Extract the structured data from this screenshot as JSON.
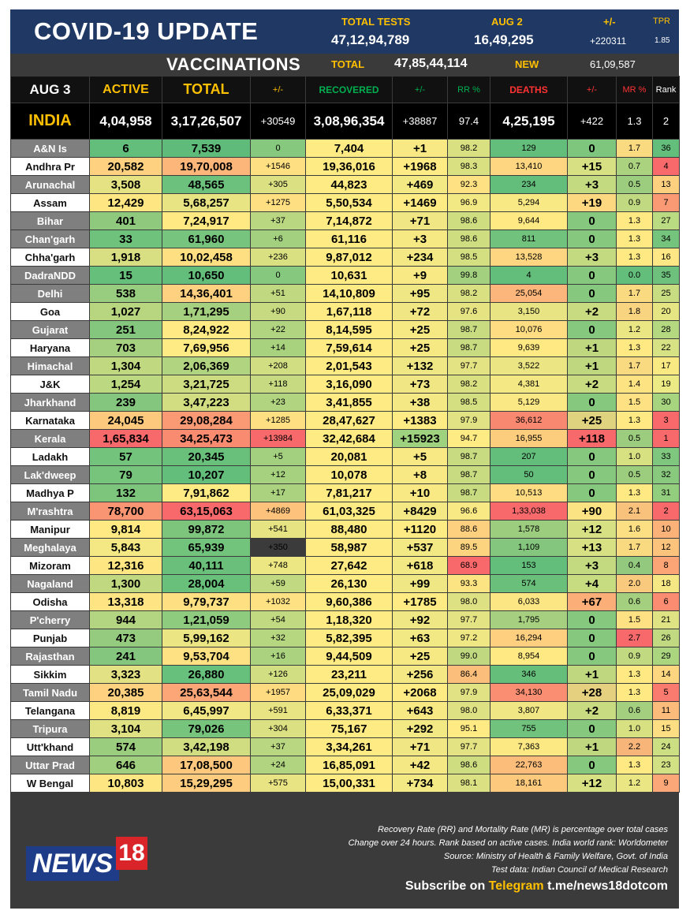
{
  "header": {
    "title": "COVID-19 UPDATE",
    "total_tests_label": "TOTAL TESTS",
    "total_tests_value": "47,12,94,789",
    "aug2_label": "AUG 2",
    "aug2_value": "16,49,295",
    "change_label": "+/-",
    "change_value": "+220311",
    "tpr_label": "TPR",
    "tpr_value": "1.85",
    "vacc_title": "VACCINATIONS",
    "vacc_total_label": "TOTAL",
    "vacc_total_value": "47,85,44,114",
    "vacc_new_label": "NEW",
    "vacc_new_value": "61,09,587"
  },
  "columns": {
    "date": "AUG 3",
    "active": "ACTIVE",
    "total": "TOTAL",
    "pm1": "+/-",
    "recovered": "RECOVERED",
    "pm2": "+/-",
    "rr": "RR %",
    "deaths": "DEATHS",
    "pm3": "+/-",
    "mr": "MR %",
    "rank": "Rank"
  },
  "india": {
    "name": "INDIA",
    "active": "4,04,958",
    "total": "3,17,26,507",
    "total_change": "+30549",
    "recovered": "3,08,96,354",
    "recovered_change": "+38887",
    "rr": "97.4",
    "deaths": "4,25,195",
    "deaths_change": "+422",
    "mr": "1.3",
    "rank": "2"
  },
  "rows": [
    {
      "state": "A&N Is",
      "active": "6",
      "total": "7,539",
      "tc": "0",
      "rec": "7,404",
      "rc": "+1",
      "rr": "98.2",
      "deaths": "129",
      "dc": "0",
      "mr": "1.7",
      "rank": "36",
      "s": "g",
      "c": [
        "#63be7b",
        "#5fbb79",
        "#86c97e",
        "#ffeb84",
        "#f8e984",
        "#d8e082",
        "#63be7b",
        "#7ec67e",
        "#f9da80",
        "#63be7b"
      ]
    },
    {
      "state": "Andhra Pr",
      "active": "20,582",
      "total": "19,70,008",
      "tc": "+1546",
      "rec": "19,36,016",
      "rc": "+1968",
      "rr": "98.3",
      "deaths": "13,410",
      "dc": "+15",
      "mr": "0.7",
      "rank": "4",
      "s": "w",
      "c": [
        "#fdd17f",
        "#fcb67a",
        "#fedf82",
        "#ffeb84",
        "#ffeb84",
        "#d9e082",
        "#fed580",
        "#d7e082",
        "#aad27f",
        "#f8696b"
      ]
    },
    {
      "state": "Arunachal",
      "active": "3,508",
      "total": "48,565",
      "tc": "+305",
      "rec": "44,823",
      "rc": "+469",
      "rr": "92.3",
      "deaths": "234",
      "dc": "+3",
      "mr": "0.5",
      "rank": "13",
      "s": "g",
      "c": [
        "#e5e283",
        "#6cc17c",
        "#dbe082",
        "#ffeb84",
        "#f2e884",
        "#fee182",
        "#63be7b",
        "#c4da81",
        "#9ccc7e",
        "#fdd07f"
      ]
    },
    {
      "state": "Assam",
      "active": "12,429",
      "total": "5,68,257",
      "tc": "+1275",
      "rec": "5,50,534",
      "rc": "+1469",
      "rr": "96.9",
      "deaths": "5,294",
      "dc": "+19",
      "mr": "0.9",
      "rank": "7",
      "s": "w",
      "c": [
        "#fee683",
        "#e8e483",
        "#fedf82",
        "#ffeb84",
        "#ffeb84",
        "#f2e884",
        "#f8e984",
        "#fed880",
        "#c1d980",
        "#fa9a75"
      ]
    },
    {
      "state": "Bihar",
      "active": "401",
      "total": "7,24,917",
      "tc": "+37",
      "rec": "7,14,872",
      "rc": "+71",
      "rr": "98.6",
      "deaths": "9,644",
      "dc": "0",
      "mr": "1.3",
      "rank": "27",
      "s": "g",
      "c": [
        "#8ec97e",
        "#fee983",
        "#b9d680",
        "#ffeb84",
        "#f0e784",
        "#cfdd81",
        "#fee982",
        "#86c97e",
        "#fee983",
        "#badb81"
      ]
    },
    {
      "state": "Chan'garh",
      "active": "33",
      "total": "61,960",
      "tc": "+6",
      "rec": "61,116",
      "rc": "+3",
      "rr": "98.6",
      "deaths": "811",
      "dc": "0",
      "mr": "1.3",
      "rank": "34",
      "s": "g",
      "c": [
        "#6ec27c",
        "#76c47d",
        "#a3d07f",
        "#ffeb84",
        "#f6e984",
        "#cfdd81",
        "#71c27c",
        "#86c97e",
        "#fee983",
        "#75c47d"
      ]
    },
    {
      "state": "Chha'garh",
      "active": "1,918",
      "total": "10,02,458",
      "tc": "+236",
      "rec": "9,87,012",
      "rc": "+234",
      "rr": "98.5",
      "deaths": "13,528",
      "dc": "+3",
      "mr": "1.3",
      "rank": "16",
      "s": "w",
      "c": [
        "#d7df82",
        "#fedf82",
        "#d8e082",
        "#ffeb84",
        "#f4e884",
        "#d4df82",
        "#fed580",
        "#c4da81",
        "#fee983",
        "#fee784"
      ]
    },
    {
      "state": "DadraNDD",
      "active": "15",
      "total": "10,650",
      "tc": "0",
      "rec": "10,631",
      "rc": "+9",
      "rr": "99.8",
      "deaths": "4",
      "dc": "0",
      "mr": "0.0",
      "rank": "35",
      "s": "g",
      "c": [
        "#66bf7b",
        "#63be7b",
        "#86c97e",
        "#ffeb84",
        "#f8e984",
        "#a3d07f",
        "#63be7b",
        "#86c97e",
        "#63be7b",
        "#6dc17c"
      ]
    },
    {
      "state": "Delhi",
      "active": "538",
      "total": "14,36,401",
      "tc": "+51",
      "rec": "14,10,809",
      "rc": "+95",
      "rr": "98.2",
      "deaths": "25,054",
      "dc": "0",
      "mr": "1.7",
      "rank": "25",
      "s": "g",
      "c": [
        "#98cc7e",
        "#fdd17f",
        "#c0d980",
        "#ffeb84",
        "#eee784",
        "#d9e082",
        "#fcb57a",
        "#86c97e",
        "#f9da80",
        "#c8dc81"
      ]
    },
    {
      "state": "Goa",
      "active": "1,027",
      "total": "1,71,295",
      "tc": "+90",
      "rec": "1,67,118",
      "rc": "+72",
      "rr": "97.6",
      "deaths": "3,150",
      "dc": "+2",
      "mr": "1.8",
      "rank": "20",
      "s": "w",
      "c": [
        "#b8d680",
        "#a5d07f",
        "#c8da81",
        "#ffeb84",
        "#f0e784",
        "#e6e383",
        "#e8e483",
        "#c9db81",
        "#f8d380",
        "#e6e583"
      ]
    },
    {
      "state": "Gujarat",
      "active": "251",
      "total": "8,24,922",
      "tc": "+22",
      "rec": "8,14,595",
      "rc": "+25",
      "rr": "98.7",
      "deaths": "10,076",
      "dc": "0",
      "mr": "1.2",
      "rank": "28",
      "s": "g",
      "c": [
        "#84c67d",
        "#ffea84",
        "#b0d480",
        "#ffeb84",
        "#f6e984",
        "#c9db81",
        "#fedc81",
        "#86c97e",
        "#eae683",
        "#b3d880"
      ]
    },
    {
      "state": "Haryana",
      "active": "703",
      "total": "7,69,956",
      "tc": "+14",
      "rec": "7,59,614",
      "rc": "+25",
      "rr": "98.7",
      "deaths": "9,639",
      "dc": "+1",
      "mr": "1.3",
      "rank": "22",
      "s": "w",
      "c": [
        "#a5d07f",
        "#ffeb84",
        "#a9d27f",
        "#ffeb84",
        "#f6e984",
        "#c9db81",
        "#fee982",
        "#bfd880",
        "#fee983",
        "#d6e283"
      ]
    },
    {
      "state": "Himachal",
      "active": "1,304",
      "total": "2,06,369",
      "tc": "+208",
      "rec": "2,01,543",
      "rc": "+132",
      "rr": "97.7",
      "deaths": "3,522",
      "dc": "+1",
      "mr": "1.7",
      "rank": "17",
      "s": "g",
      "c": [
        "#c0d980",
        "#b0d480",
        "#d1de82",
        "#ffeb84",
        "#efe784",
        "#e4e383",
        "#ebe683",
        "#bfd880",
        "#f9da80",
        "#f9e983"
      ]
    },
    {
      "state": "J&K",
      "active": "1,254",
      "total": "3,21,725",
      "tc": "+118",
      "rec": "3,16,090",
      "rc": "+73",
      "rr": "98.2",
      "deaths": "4,381",
      "dc": "+2",
      "mr": "1.4",
      "rank": "19",
      "s": "w",
      "c": [
        "#bcd880",
        "#cedc81",
        "#c8da81",
        "#ffeb84",
        "#f0e784",
        "#d9e082",
        "#f4e884",
        "#c9db81",
        "#fee382",
        "#ecea84"
      ]
    },
    {
      "state": "Jharkhand",
      "active": "239",
      "total": "3,47,223",
      "tc": "+23",
      "rec": "3,41,855",
      "rc": "+38",
      "rr": "98.5",
      "deaths": "5,129",
      "dc": "0",
      "mr": "1.5",
      "rank": "30",
      "s": "g",
      "c": [
        "#84c67d",
        "#d2dd81",
        "#b0d480",
        "#ffeb84",
        "#f4e884",
        "#d4df82",
        "#fae884",
        "#86c97e",
        "#fde182",
        "#a6d47f"
      ]
    },
    {
      "state": "Karnataka",
      "active": "24,045",
      "total": "29,08,284",
      "tc": "+1285",
      "rec": "28,47,627",
      "rc": "+1383",
      "rr": "97.9",
      "deaths": "36,612",
      "dc": "+25",
      "mr": "1.3",
      "rank": "3",
      "s": "w",
      "c": [
        "#fdc97d",
        "#fa9a75",
        "#fedf82",
        "#ffeb84",
        "#ffeb84",
        "#e1e283",
        "#f98870",
        "#e0d380",
        "#fee983",
        "#f8696b"
      ]
    },
    {
      "state": "Kerala",
      "active": "1,65,834",
      "total": "34,25,473",
      "tc": "+13984",
      "rec": "32,42,684",
      "rc": "+15923",
      "rr": "94.7",
      "deaths": "16,955",
      "dc": "+118",
      "mr": "0.5",
      "rank": "1",
      "s": "g",
      "c": [
        "#f8696b",
        "#f98b71",
        "#f8696b",
        "#ffeb84",
        "#9fd27f",
        "#ffeb84",
        "#fdcd7e",
        "#f8696b",
        "#9ccc7e",
        "#f8696b"
      ]
    },
    {
      "state": "Ladakh",
      "active": "57",
      "total": "20,345",
      "tc": "+5",
      "rec": "20,081",
      "rc": "+5",
      "rr": "98.7",
      "deaths": "207",
      "dc": "0",
      "mr": "1.0",
      "rank": "33",
      "s": "w",
      "c": [
        "#73c37c",
        "#68c07b",
        "#a3d07f",
        "#ffeb84",
        "#f8e984",
        "#c9db81",
        "#63be7b",
        "#86c97e",
        "#d7e182",
        "#7fc77e"
      ]
    },
    {
      "state": "Lak'dweep",
      "active": "79",
      "total": "10,207",
      "tc": "+12",
      "rec": "10,078",
      "rc": "+8",
      "rr": "98.7",
      "deaths": "50",
      "dc": "0",
      "mr": "0.5",
      "rank": "32",
      "s": "g",
      "c": [
        "#77c47d",
        "#63be7b",
        "#a6d17f",
        "#ffeb84",
        "#f8e984",
        "#c9db81",
        "#63be7b",
        "#86c97e",
        "#9ccc7e",
        "#89c97e"
      ]
    },
    {
      "state": "Madhya P",
      "active": "132",
      "total": "7,91,862",
      "tc": "+17",
      "rec": "7,81,217",
      "rc": "+10",
      "rr": "98.7",
      "deaths": "10,513",
      "dc": "0",
      "mr": "1.3",
      "rank": "31",
      "s": "w",
      "c": [
        "#7dc57d",
        "#ffeb84",
        "#aad27f",
        "#ffeb84",
        "#f8e984",
        "#c9db81",
        "#fedc81",
        "#86c97e",
        "#fee983",
        "#93cd7e"
      ]
    },
    {
      "state": "M'rashtra",
      "active": "78,700",
      "total": "63,15,063",
      "tc": "+4869",
      "rec": "61,03,325",
      "rc": "+8429",
      "rr": "96.6",
      "deaths": "1,33,038",
      "dc": "+90",
      "mr": "2.1",
      "rank": "2",
      "s": "g",
      "c": [
        "#fa9574",
        "#f8696b",
        "#fdc37c",
        "#ffeb84",
        "#f4e884",
        "#f8e984",
        "#f8696b",
        "#fbe383",
        "#f8c17c",
        "#f8696b"
      ]
    },
    {
      "state": "Manipur",
      "active": "9,814",
      "total": "99,872",
      "tc": "+541",
      "rec": "88,480",
      "rc": "+1120",
      "rr": "88.6",
      "deaths": "1,578",
      "dc": "+12",
      "mr": "1.6",
      "rank": "10",
      "s": "w",
      "c": [
        "#fee983",
        "#7dc57d",
        "#e6e383",
        "#ffeb84",
        "#ffeb84",
        "#fdd07f",
        "#9ccc7e",
        "#d7e082",
        "#fbdf82",
        "#fbb279"
      ]
    },
    {
      "state": "Meghalaya",
      "active": "5,843",
      "total": "65,939",
      "tc": "+350",
      "rec": "58,987",
      "rc": "+537",
      "rr": "89.5",
      "deaths": "1,109",
      "dc": "+13",
      "mr": "1.7",
      "rank": "12",
      "s": "g",
      "c": [
        "#f4e884",
        "#72c37c",
        "#ddе182",
        "#ffeb84",
        "#f2e884",
        "#fcd37f",
        "#84c67d",
        "#d7e082",
        "#f9da80",
        "#fcc37c"
      ]
    },
    {
      "state": "Mizoram",
      "active": "12,316",
      "total": "40,111",
      "tc": "+748",
      "rec": "27,642",
      "rc": "+618",
      "rr": "68.9",
      "deaths": "153",
      "dc": "+3",
      "mr": "0.4",
      "rank": "8",
      "s": "w",
      "c": [
        "#fee683",
        "#6ac07b",
        "#ede783",
        "#ffeb84",
        "#f2e884",
        "#f8696b",
        "#63be7b",
        "#c4da81",
        "#93c97e",
        "#fba576"
      ]
    },
    {
      "state": "Nagaland",
      "active": "1,300",
      "total": "28,004",
      "tc": "+59",
      "rec": "26,130",
      "rc": "+99",
      "rr": "93.3",
      "deaths": "574",
      "dc": "+4",
      "mr": "2.0",
      "rank": "18",
      "s": "g",
      "c": [
        "#c0d980",
        "#68c07b",
        "#c1d980",
        "#ffeb84",
        "#eee784",
        "#fde482",
        "#6ac07b",
        "#c7db81",
        "#f9c97d",
        "#f5e884"
      ]
    },
    {
      "state": "Odisha",
      "active": "13,318",
      "total": "9,79,737",
      "tc": "+1032",
      "rec": "9,60,386",
      "rc": "+1785",
      "rr": "98.0",
      "deaths": "6,033",
      "dc": "+67",
      "mr": "0.6",
      "rank": "6",
      "s": "w",
      "c": [
        "#fee483",
        "#fee082",
        "#fde182",
        "#ffeb84",
        "#ffeb84",
        "#dee183",
        "#fbe683",
        "#fbae78",
        "#a3cf7f",
        "#f98c71"
      ]
    },
    {
      "state": "P'cherry",
      "active": "944",
      "total": "1,21,059",
      "tc": "+54",
      "rec": "1,18,320",
      "rc": "+92",
      "rr": "97.7",
      "deaths": "1,795",
      "dc": "0",
      "mr": "1.5",
      "rank": "21",
      "s": "g",
      "c": [
        "#b3d480",
        "#8ecb7e",
        "#c1d980",
        "#ffeb84",
        "#eee784",
        "#e4e383",
        "#a6cf7f",
        "#86c97e",
        "#fde182",
        "#dfe383"
      ]
    },
    {
      "state": "Punjab",
      "active": "473",
      "total": "5,99,162",
      "tc": "+32",
      "rec": "5,82,395",
      "rc": "+63",
      "rr": "97.2",
      "deaths": "16,294",
      "dc": "0",
      "mr": "2.7",
      "rank": "26",
      "s": "w",
      "c": [
        "#94cb7e",
        "#ebe583",
        "#b6d680",
        "#ffeb84",
        "#f2e884",
        "#eee783",
        "#fdcf7f",
        "#86c97e",
        "#f8696b",
        "#c1da81"
      ]
    },
    {
      "state": "Rajasthan",
      "active": "241",
      "total": "9,53,704",
      "tc": "+16",
      "rec": "9,44,509",
      "rc": "+25",
      "rr": "99.0",
      "deaths": "8,954",
      "dc": "0",
      "mr": "0.9",
      "rank": "29",
      "s": "g",
      "c": [
        "#84c67d",
        "#fee182",
        "#abd37f",
        "#ffeb84",
        "#f6e984",
        "#c0d880",
        "#fee983",
        "#86c97e",
        "#c1d980",
        "#acd580"
      ]
    },
    {
      "state": "Sikkim",
      "active": "3,323",
      "total": "26,880",
      "tc": "+126",
      "rec": "23,211",
      "rc": "+256",
      "rr": "86.4",
      "deaths": "346",
      "dc": "+1",
      "mr": "1.3",
      "rank": "14",
      "s": "w",
      "c": [
        "#e2e183",
        "#67c07b",
        "#d1de82",
        "#ffeb84",
        "#f4e884",
        "#fcbf7b",
        "#65bf7b",
        "#bfd880",
        "#fee983",
        "#fdd680"
      ]
    },
    {
      "state": "Tamil Nadu",
      "active": "20,385",
      "total": "25,63,544",
      "tc": "+1957",
      "rec": "25,09,029",
      "rc": "+2068",
      "rr": "97.9",
      "deaths": "34,130",
      "dc": "+28",
      "mr": "1.3",
      "rank": "5",
      "s": "g",
      "c": [
        "#fdd17f",
        "#fca577",
        "#fedb81",
        "#ffeb84",
        "#ffeb84",
        "#e1e283",
        "#f98e72",
        "#e5d080",
        "#fee983",
        "#f97a6e"
      ]
    },
    {
      "state": "Telangana",
      "active": "8,819",
      "total": "6,45,997",
      "tc": "+591",
      "rec": "6,33,371",
      "rc": "+643",
      "rr": "98.0",
      "deaths": "3,807",
      "dc": "+2",
      "mr": "0.6",
      "rank": "11",
      "s": "w",
      "c": [
        "#fce984",
        "#f1e784",
        "#e8e483",
        "#ffeb84",
        "#f6e984",
        "#dee183",
        "#f0e784",
        "#c9db81",
        "#a3cf7f",
        "#fbbb7a"
      ]
    },
    {
      "state": "Tripura",
      "active": "3,104",
      "total": "79,026",
      "tc": "+304",
      "rec": "75,167",
      "rc": "+292",
      "rr": "95.1",
      "deaths": "755",
      "dc": "0",
      "mr": "1.0",
      "rank": "15",
      "s": "g",
      "c": [
        "#dfe183",
        "#77c47d",
        "#dbe082",
        "#ffeb84",
        "#f2e884",
        "#ffea84",
        "#70c27c",
        "#86c97e",
        "#d7e182",
        "#fede82"
      ]
    },
    {
      "state": "Utt'khand",
      "active": "574",
      "total": "3,42,198",
      "tc": "+37",
      "rec": "3,34,261",
      "rc": "+71",
      "rr": "97.7",
      "deaths": "7,363",
      "dc": "+1",
      "mr": "2.2",
      "rank": "24",
      "s": "w",
      "c": [
        "#9bcd7e",
        "#d1dd81",
        "#b9d680",
        "#ffeb84",
        "#f0e784",
        "#e4e383",
        "#fde983",
        "#bfd880",
        "#f8b57a",
        "#ccdf82"
      ]
    },
    {
      "state": "Uttar Prad",
      "active": "646",
      "total": "17,08,500",
      "tc": "+24",
      "rec": "16,85,091",
      "rc": "+42",
      "rr": "98.6",
      "deaths": "22,763",
      "dc": "0",
      "mr": "1.3",
      "rank": "23",
      "s": "g",
      "c": [
        "#a0cf7f",
        "#fdc77d",
        "#b0d480",
        "#ffeb84",
        "#f4e884",
        "#cfdd81",
        "#fcbd7b",
        "#86c97e",
        "#fee983",
        "#d1e183"
      ]
    },
    {
      "state": "W Bengal",
      "active": "10,803",
      "total": "15,29,295",
      "tc": "+575",
      "rec": "15,00,331",
      "rc": "+734",
      "rr": "98.1",
      "deaths": "18,161",
      "dc": "+12",
      "mr": "1.2",
      "rank": "9",
      "s": "w",
      "c": [
        "#fee783",
        "#fdcc7e",
        "#e8e483",
        "#ffeb84",
        "#f2e884",
        "#dbe082",
        "#fdc97d",
        "#d7e082",
        "#eae683",
        "#fba777"
      ]
    }
  ],
  "footer": {
    "note1": "Recovery Rate (RR) and Mortality Rate (MR) is percentage over total cases",
    "note2": "Change over 24 hours. Rank based on active cases. India world rank: Worldometer",
    "note3": "Source: Ministry of Health & Family Welfare, Govt. of India",
    "note4": "Test data: Indian Council of Medical Research",
    "logo_text": "NEWS",
    "logo_num": "18",
    "subscribe_prefix": "Subscribe on ",
    "subscribe_channel": "Telegram",
    "subscribe_link": " t.me/news18dotcom"
  },
  "colors": {
    "header_bg": "#1f3864",
    "accent_yellow": "#ffc000",
    "recovered_green": "#00b050",
    "deaths_red": "#ff3333",
    "state_gray": "#7f7f7f"
  }
}
